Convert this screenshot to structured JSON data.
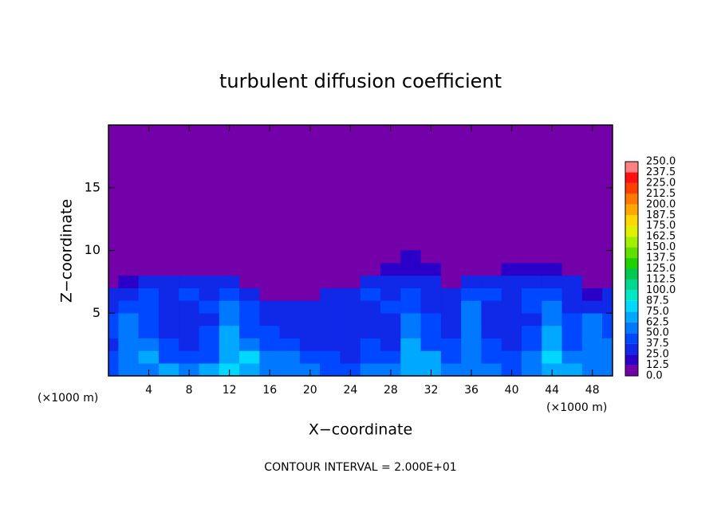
{
  "chart_data": {
    "type": "contour",
    "title": "turbulent diffusion coefficient",
    "xlabel": "X−coordinate",
    "ylabel": "Z−coordinate",
    "x_unit": "(×1000 m)",
    "y_unit": "(×1000 m)",
    "annotation": "CONTOUR INTERVAL = 2.000E+01",
    "xlim": [
      0,
      50
    ],
    "ylim": [
      0,
      20
    ],
    "xticks": [
      4,
      8,
      12,
      16,
      20,
      24,
      28,
      32,
      36,
      40,
      44,
      48
    ],
    "yticks": [
      5,
      10,
      15
    ],
    "field": {
      "x": [
        0,
        2,
        4,
        6,
        8,
        10,
        12,
        14,
        16,
        18,
        20,
        22,
        24,
        26,
        28,
        30,
        32,
        34,
        36,
        38,
        40,
        42,
        44,
        46,
        48,
        50
      ],
      "z": [
        0,
        1,
        2,
        3,
        4,
        5,
        6,
        7,
        8,
        9
      ],
      "values": [
        [
          45,
          50,
          62,
          70,
          55,
          72,
          78,
          70,
          60,
          55,
          50,
          45,
          40,
          50,
          55,
          65,
          70,
          55,
          60,
          50,
          45,
          60,
          70,
          65,
          50,
          55
        ],
        [
          40,
          55,
          65,
          45,
          40,
          45,
          70,
          75,
          55,
          50,
          45,
          40,
          35,
          45,
          40,
          70,
          65,
          45,
          55,
          45,
          40,
          55,
          75,
          60,
          55,
          60
        ],
        [
          35,
          60,
          55,
          40,
          35,
          40,
          65,
          60,
          45,
          40,
          35,
          30,
          30,
          40,
          35,
          65,
          45,
          40,
          50,
          40,
          35,
          45,
          70,
          45,
          60,
          50
        ],
        [
          40,
          55,
          45,
          35,
          30,
          40,
          65,
          45,
          40,
          35,
          30,
          30,
          30,
          35,
          30,
          60,
          40,
          35,
          55,
          35,
          30,
          40,
          65,
          40,
          55,
          45
        ],
        [
          45,
          60,
          40,
          30,
          30,
          35,
          60,
          45,
          35,
          30,
          30,
          30,
          30,
          30,
          35,
          55,
          40,
          35,
          60,
          30,
          30,
          35,
          60,
          40,
          50,
          40
        ],
        [
          35,
          40,
          40,
          35,
          35,
          40,
          55,
          40,
          35,
          30,
          30,
          30,
          30,
          35,
          40,
          45,
          35,
          35,
          55,
          35,
          35,
          40,
          55,
          35,
          35,
          30
        ],
        [
          25,
          35,
          40,
          35,
          40,
          35,
          45,
          30,
          5,
          5,
          5,
          25,
          30,
          40,
          35,
          40,
          35,
          35,
          45,
          40,
          35,
          45,
          45,
          35,
          20,
          25
        ],
        [
          5,
          20,
          25,
          25,
          30,
          30,
          30,
          5,
          5,
          5,
          5,
          5,
          5,
          30,
          35,
          35,
          30,
          5,
          30,
          30,
          35,
          35,
          35,
          30,
          5,
          5
        ],
        [
          5,
          5,
          5,
          5,
          5,
          5,
          5,
          5,
          5,
          5,
          5,
          5,
          5,
          5,
          20,
          20,
          20,
          5,
          5,
          5,
          20,
          20,
          20,
          5,
          5,
          5
        ],
        [
          5,
          5,
          5,
          5,
          5,
          5,
          5,
          5,
          5,
          5,
          5,
          5,
          5,
          5,
          5,
          15,
          5,
          5,
          5,
          5,
          5,
          5,
          5,
          5,
          5,
          5
        ]
      ]
    },
    "colorbar": {
      "levels": [
        {
          "value": 0,
          "label": "0.0"
        },
        12.5,
        {
          "value": 25,
          "label": "25.0"
        },
        37.5,
        {
          "value": 50,
          "label": "50.0"
        },
        62.5,
        {
          "value": 75,
          "label": "75.0"
        },
        87.5,
        {
          "value": 100,
          "label": "100.0"
        },
        112.5,
        {
          "value": 125,
          "label": "125.0"
        },
        137.5,
        {
          "value": 150,
          "label": "150.0"
        },
        162.5,
        {
          "value": 175,
          "label": "175.0"
        },
        187.5,
        {
          "value": 200,
          "label": "200.0"
        },
        212.5,
        {
          "value": 225,
          "label": "225.0"
        },
        237.5,
        {
          "value": 250,
          "label": "250.0"
        }
      ],
      "colors": [
        "#7300a8",
        "#2a00c8",
        "#1028e8",
        "#0048ff",
        "#0078ff",
        "#00a8ff",
        "#00d8ff",
        "#00e8c8",
        "#00d890",
        "#00c850",
        "#20d000",
        "#60e000",
        "#a0f000",
        "#e0f000",
        "#ffd800",
        "#ffa800",
        "#ff7800",
        "#ff4000",
        "#ff1010",
        "#ff8080"
      ]
    }
  }
}
